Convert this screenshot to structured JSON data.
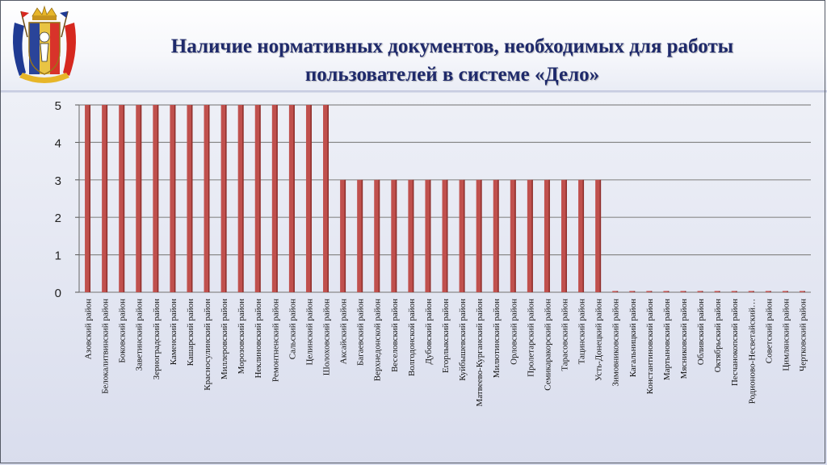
{
  "title": {
    "line1": "Наличие нормативных документов, необходимых для работы",
    "line2": "пользователей в системе «Дело»"
  },
  "emblem": {
    "name": "rostov-oblast-coat-of-arms-icon"
  },
  "colors": {
    "bar": "#c0504d",
    "bar_dark": "#8e2f2c",
    "grid": "#8a8a8a",
    "title": "#1f2a6b"
  },
  "chart_data": {
    "type": "bar",
    "categories": [
      "Азовский район",
      "Белокалитвинский район",
      "Боковский район",
      "Заветинский район",
      "Зерноградский район",
      "Каменский район",
      "Кашарский район",
      "Красносулинский район",
      "Миллеровский район",
      "Морозовский район",
      "Неклиновский район",
      "Ремонтненский район",
      "Сальский район",
      "Целинский район",
      "Шолоховский район",
      "Аксайский район",
      "Багаевский район",
      "Верхнедонской район",
      "Веселовский район",
      "Волгодонской район",
      "Дубовский район",
      "Егорлыкский район",
      "Куйбышевский район",
      "Матвеево-Курганский район",
      "Милютинский район",
      "Орловский район",
      "Пролетарский район",
      "Семикаракорский район",
      "Тарасовский район",
      "Тацинский район",
      "Усть-Донецкий район",
      "Зимовниковский район",
      "Кагальницкий район",
      "Константиновский район",
      "Мартыновский район",
      "Мясниковский район",
      "Обливский район",
      "Октябрьский район",
      "Песчанокопский район",
      "Родионово-Несветайский…",
      "Советский район",
      "Цимлянский район",
      "Чертковский район"
    ],
    "values": [
      5,
      5,
      5,
      5,
      5,
      5,
      5,
      5,
      5,
      5,
      5,
      5,
      5,
      5,
      5,
      3,
      3,
      3,
      3,
      3,
      3,
      3,
      3,
      3,
      3,
      3,
      3,
      3,
      3,
      3,
      3,
      0,
      0,
      0,
      0,
      0,
      0,
      0,
      0,
      0,
      0,
      0,
      0
    ],
    "yticks": [
      "0",
      "1",
      "2",
      "3",
      "4",
      "5"
    ],
    "ylim": [
      0,
      5
    ],
    "grid": true,
    "legend": "none"
  }
}
